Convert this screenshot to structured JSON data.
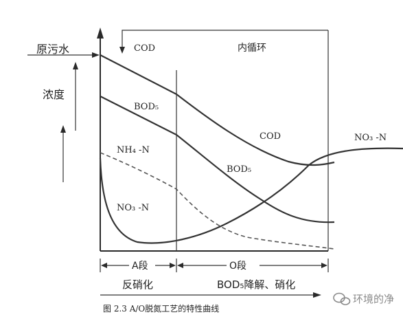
{
  "labels": {
    "raw_water": "原污水",
    "concentration": "浓度",
    "cod_top": "COD",
    "internal_recycle": "内循环",
    "bod5_upper": "BOD₅",
    "nh4_n": "NH₄  -N",
    "no3_n_left": "NO₃  -N",
    "cod_right": "COD",
    "bod5_right": "BOD₅",
    "no3_n_right": "NO₃  -N",
    "a_stage": "A段",
    "o_stage": "O段",
    "denitrification": "反硝化",
    "bod_degradation": "BOD₅降解、硝化",
    "caption": "图 2.3   A/O脱氮工艺的特性曲线",
    "watermark": "环境的净"
  },
  "colors": {
    "line": "#333333",
    "axis": "#2a2a2a",
    "dashed": "#555555",
    "watermark": "#8a8a8a"
  }
}
